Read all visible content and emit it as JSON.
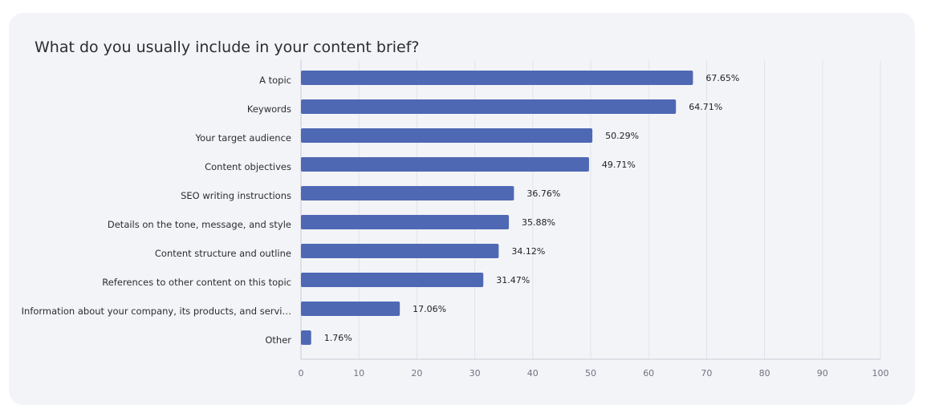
{
  "chart_data": {
    "type": "bar",
    "orientation": "horizontal",
    "title": "What do you usually include in your content brief?",
    "categories": [
      "A topic",
      "Keywords",
      "Your target audience",
      "Content objectives",
      "SEO writing instructions",
      "Details on the tone, message, and style",
      "Content structure and outline",
      "References to other content on this topic",
      "Information about your company, its products, and servi…",
      "Other"
    ],
    "values": [
      67.65,
      64.71,
      50.29,
      49.71,
      36.76,
      35.88,
      34.12,
      31.47,
      17.06,
      1.76
    ],
    "value_labels": [
      "67.65%",
      "64.71%",
      "50.29%",
      "49.71%",
      "36.76%",
      "35.88%",
      "34.12%",
      "31.47%",
      "17.06%",
      "1.76%"
    ],
    "xlim": [
      0,
      100
    ],
    "xticks": [
      "0",
      "10",
      "20",
      "30",
      "40",
      "50",
      "60",
      "70",
      "80",
      "90",
      "100"
    ],
    "grid": "vertical",
    "bar_color": "#4e68b4",
    "xlabel": "",
    "ylabel": ""
  }
}
